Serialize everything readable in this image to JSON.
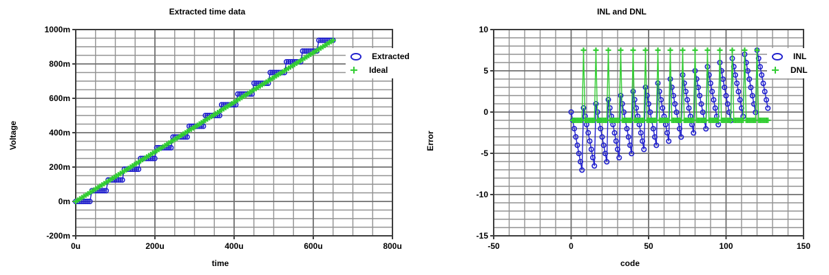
{
  "figure": {
    "background": "#ffffff",
    "grid_minor_color": "#919191",
    "grid_major_color": "#6f6f6f",
    "frame_color": "#3c3c3c"
  },
  "chart_data": [
    {
      "id": "extracted-time-data",
      "type": "line",
      "title": "Extracted time data",
      "xlabel": "time",
      "ylabel": "Voltage",
      "xlim": [
        0,
        800
      ],
      "ylim": [
        -200,
        1000
      ],
      "xticks": [
        0,
        200,
        400,
        600,
        800
      ],
      "xtick_labels": [
        "0u",
        "200u",
        "400u",
        "600u",
        "800u"
      ],
      "yticks": [
        1000,
        800,
        600,
        400,
        200,
        0,
        -200
      ],
      "ytick_labels": [
        "1000m",
        "800m",
        "600m",
        "400m",
        "200m",
        "0m",
        "-200m"
      ],
      "x_minor_step": 50,
      "y_minor_step": 50,
      "grid": true,
      "legend_position": "upper-right",
      "x": [
        0,
        5.1,
        10.2,
        15.4,
        20.5,
        25.6,
        30.7,
        35.8,
        40.9,
        46.1,
        51.2,
        56.3,
        61.4,
        66.5,
        71.7,
        76.8,
        81.9,
        87.0,
        92.1,
        97.2,
        102.4,
        107.5,
        112.6,
        117.7,
        122.8,
        128.0,
        133.1,
        138.2,
        143.3,
        148.4,
        153.5,
        158.7,
        163.8,
        168.9,
        174.0,
        179.1,
        184.3,
        189.4,
        194.5,
        199.6,
        204.7,
        209.8,
        215.0,
        220.1,
        225.2,
        230.3,
        235.4,
        240.6,
        245.7,
        250.8,
        255.9,
        261.0,
        266.1,
        271.3,
        276.4,
        281.5,
        286.6,
        291.7,
        296.9,
        302.0,
        307.1,
        312.2,
        317.3,
        322.4,
        327.6,
        332.7,
        337.8,
        342.9,
        348.0,
        353.1,
        358.3,
        363.4,
        368.5,
        373.6,
        378.7,
        383.9,
        389.0,
        394.1,
        399.2,
        404.3,
        409.4,
        414.6,
        419.7,
        424.8,
        429.9,
        435.0,
        440.2,
        445.3,
        450.4,
        455.5,
        460.6,
        465.7,
        470.9,
        476.0,
        481.1,
        486.2,
        491.3,
        496.5,
        501.6,
        506.7,
        511.8,
        516.9,
        522.0,
        527.2,
        532.3,
        537.4,
        542.5,
        547.6,
        552.8,
        557.9,
        563.0,
        568.1,
        573.2,
        578.3,
        583.5,
        588.6,
        593.7,
        598.8,
        603.9,
        609.1,
        614.2,
        619.3,
        624.4,
        629.5,
        634.6,
        639.8,
        644.9,
        650.0
      ],
      "series": [
        {
          "name": "Extracted",
          "marker": "circle",
          "color": "#2121cd",
          "y": [
            0,
            0,
            0,
            0,
            0,
            0,
            0,
            0,
            62.5,
            62.5,
            62.5,
            62.5,
            62.5,
            62.5,
            62.5,
            62.5,
            125,
            125,
            125,
            125,
            125,
            125,
            125,
            125,
            187.5,
            187.5,
            187.5,
            187.5,
            187.5,
            187.5,
            187.5,
            187.5,
            250,
            250,
            250,
            250,
            250,
            250,
            250,
            250,
            312.5,
            312.5,
            312.5,
            312.5,
            312.5,
            312.5,
            312.5,
            312.5,
            375,
            375,
            375,
            375,
            375,
            375,
            375,
            375,
            437.5,
            437.5,
            437.5,
            437.5,
            437.5,
            437.5,
            437.5,
            437.5,
            500,
            500,
            500,
            500,
            500,
            500,
            500,
            500,
            562.5,
            562.5,
            562.5,
            562.5,
            562.5,
            562.5,
            562.5,
            562.5,
            625,
            625,
            625,
            625,
            625,
            625,
            625,
            625,
            687.5,
            687.5,
            687.5,
            687.5,
            687.5,
            687.5,
            687.5,
            687.5,
            750,
            750,
            750,
            750,
            750,
            750,
            750,
            750,
            812.5,
            812.5,
            812.5,
            812.5,
            812.5,
            812.5,
            812.5,
            812.5,
            875,
            875,
            875,
            875,
            875,
            875,
            875,
            875,
            937.5,
            937.5,
            937.5,
            937.5,
            937.5,
            937.5,
            937.5,
            937.5
          ]
        },
        {
          "name": "Ideal",
          "marker": "plus",
          "color": "#32cd32",
          "y": [
            0,
            7.4,
            14.8,
            22.1,
            29.5,
            36.9,
            44.3,
            51.7,
            59.1,
            66.4,
            73.8,
            81.2,
            88.6,
            96.0,
            103.3,
            110.7,
            118.1,
            125.5,
            132.9,
            140.3,
            147.6,
            155.0,
            162.4,
            169.8,
            177.2,
            184.5,
            191.9,
            199.3,
            206.7,
            214.1,
            221.5,
            228.8,
            236.2,
            243.6,
            251.0,
            258.4,
            265.7,
            273.1,
            280.5,
            287.9,
            295.3,
            302.7,
            310.0,
            317.4,
            324.8,
            332.2,
            339.6,
            346.9,
            354.3,
            361.7,
            369.1,
            376.5,
            383.9,
            391.2,
            398.6,
            406.0,
            413.4,
            420.8,
            428.2,
            435.5,
            442.9,
            450.3,
            457.7,
            465.1,
            472.4,
            479.8,
            487.2,
            494.6,
            502.0,
            509.4,
            516.7,
            524.1,
            531.5,
            538.9,
            546.3,
            553.6,
            561.0,
            568.4,
            575.8,
            583.2,
            590.6,
            597.9,
            605.3,
            612.7,
            620.1,
            627.5,
            634.8,
            642.2,
            649.6,
            657.0,
            664.4,
            671.8,
            679.1,
            686.5,
            693.9,
            701.3,
            708.7,
            716.0,
            723.4,
            730.8,
            738.2,
            745.6,
            753.0,
            760.3,
            767.7,
            775.1,
            782.5,
            789.9,
            797.2,
            804.6,
            812.0,
            819.4,
            826.8,
            834.2,
            841.5,
            848.9,
            856.3,
            863.7,
            871.1,
            878.4,
            885.8,
            893.2,
            900.6,
            908.0,
            915.4,
            922.7,
            930.1,
            937.5
          ]
        }
      ]
    },
    {
      "id": "inl-dnl",
      "type": "line",
      "title": "INL and DNL",
      "xlabel": "code",
      "ylabel": "Error",
      "xlim": [
        -50,
        150
      ],
      "ylim": [
        -15,
        10
      ],
      "xticks": [
        -50,
        0,
        50,
        100,
        150
      ],
      "xtick_labels": [
        "-50",
        "0",
        "50",
        "100",
        "150"
      ],
      "yticks": [
        10,
        5,
        0,
        -5,
        -10,
        -15
      ],
      "ytick_labels": [
        "10",
        "5",
        "0",
        "-5",
        "-10",
        "-15"
      ],
      "x_minor_step": 10,
      "y_minor_step": 1,
      "grid": true,
      "legend_position": "upper-right",
      "series": [
        {
          "name": "INL",
          "marker": "circle",
          "color": "#2121cd",
          "x": [
            0,
            1,
            2,
            3,
            4,
            5,
            6,
            7,
            8,
            9,
            10,
            11,
            12,
            13,
            14,
            15,
            16,
            17,
            18,
            19,
            20,
            21,
            22,
            23,
            24,
            25,
            26,
            27,
            28,
            29,
            30,
            31,
            32,
            33,
            34,
            35,
            36,
            37,
            38,
            39,
            40,
            41,
            42,
            43,
            44,
            45,
            46,
            47,
            48,
            49,
            50,
            51,
            52,
            53,
            54,
            55,
            56,
            57,
            58,
            59,
            60,
            61,
            62,
            63,
            64,
            65,
            66,
            67,
            68,
            69,
            70,
            71,
            72,
            73,
            74,
            75,
            76,
            77,
            78,
            79,
            80,
            81,
            82,
            83,
            84,
            85,
            86,
            87,
            88,
            89,
            90,
            91,
            92,
            93,
            94,
            95,
            96,
            97,
            98,
            99,
            100,
            101,
            102,
            103,
            104,
            105,
            106,
            107,
            108,
            109,
            110,
            111,
            112,
            113,
            114,
            115,
            116,
            117,
            118,
            119,
            120,
            121,
            122,
            123,
            124,
            125,
            126,
            127
          ],
          "y": [
            0,
            -1,
            -2.01,
            -3.01,
            -4.02,
            -5.02,
            -6.02,
            -7.03,
            0.5,
            -0.5,
            -1.51,
            -2.51,
            -3.52,
            -4.52,
            -5.52,
            -6.53,
            1,
            0,
            -1.01,
            -2.01,
            -3.02,
            -4.02,
            -5.02,
            -6.03,
            1.5,
            0.5,
            -0.51,
            -1.51,
            -2.52,
            -3.52,
            -4.52,
            -5.53,
            2,
            1,
            -0.01,
            -1.01,
            -2.02,
            -3.02,
            -4.02,
            -5.03,
            2.5,
            1.5,
            0.49,
            -0.51,
            -1.52,
            -2.52,
            -3.52,
            -4.53,
            3,
            2,
            0.99,
            -0.01,
            -1.02,
            -2.02,
            -3.02,
            -4.03,
            3.5,
            2.5,
            1.49,
            0.49,
            -0.52,
            -1.52,
            -2.52,
            -3.53,
            4,
            3,
            1.99,
            0.99,
            -0.02,
            -1.02,
            -2.02,
            -3.03,
            4.5,
            3.5,
            2.49,
            1.49,
            0.48,
            -0.52,
            -1.52,
            -2.53,
            5,
            4,
            2.99,
            1.99,
            0.98,
            -0.02,
            -1.02,
            -2.03,
            5.5,
            4.5,
            3.49,
            2.49,
            1.48,
            0.48,
            -0.52,
            -1.53,
            6,
            5,
            3.99,
            2.99,
            1.98,
            0.98,
            -0.02,
            -1.03,
            6.5,
            5.5,
            4.49,
            3.49,
            2.48,
            1.48,
            0.48,
            -0.53,
            7,
            6,
            4.99,
            3.99,
            2.98,
            1.98,
            0.98,
            -0.03,
            7.5,
            6.5,
            5.49,
            4.49,
            3.48,
            2.48,
            1.48,
            0.47
          ]
        },
        {
          "name": "DNL",
          "marker": "plus",
          "color": "#32cd32",
          "x": [
            1,
            2,
            3,
            4,
            5,
            6,
            7,
            8,
            9,
            10,
            11,
            12,
            13,
            14,
            15,
            16,
            17,
            18,
            19,
            20,
            21,
            22,
            23,
            24,
            25,
            26,
            27,
            28,
            29,
            30,
            31,
            32,
            33,
            34,
            35,
            36,
            37,
            38,
            39,
            40,
            41,
            42,
            43,
            44,
            45,
            46,
            47,
            48,
            49,
            50,
            51,
            52,
            53,
            54,
            55,
            56,
            57,
            58,
            59,
            60,
            61,
            62,
            63,
            64,
            65,
            66,
            67,
            68,
            69,
            70,
            71,
            72,
            73,
            74,
            75,
            76,
            77,
            78,
            79,
            80,
            81,
            82,
            83,
            84,
            85,
            86,
            87,
            88,
            89,
            90,
            91,
            92,
            93,
            94,
            95,
            96,
            97,
            98,
            99,
            100,
            101,
            102,
            103,
            104,
            105,
            106,
            107,
            108,
            109,
            110,
            111,
            112,
            113,
            114,
            115,
            116,
            117,
            118,
            119,
            120,
            121,
            122,
            123,
            124,
            125,
            126,
            127
          ],
          "y": [
            -1,
            -1,
            -1,
            -1,
            -1,
            -1,
            -1,
            7.5,
            -1,
            -1,
            -1,
            -1,
            -1,
            -1,
            -1,
            7.5,
            -1,
            -1,
            -1,
            -1,
            -1,
            -1,
            -1,
            7.5,
            -1,
            -1,
            -1,
            -1,
            -1,
            -1,
            -1,
            7.5,
            -1,
            -1,
            -1,
            -1,
            -1,
            -1,
            -1,
            7.5,
            -1,
            -1,
            -1,
            -1,
            -1,
            -1,
            -1,
            7.5,
            -1,
            -1,
            -1,
            -1,
            -1,
            -1,
            -1,
            7.5,
            -1,
            -1,
            -1,
            -1,
            -1,
            -1,
            -1,
            7.5,
            -1,
            -1,
            -1,
            -1,
            -1,
            -1,
            -1,
            7.5,
            -1,
            -1,
            -1,
            -1,
            -1,
            -1,
            -1,
            7.5,
            -1,
            -1,
            -1,
            -1,
            -1,
            -1,
            -1,
            7.5,
            -1,
            -1,
            -1,
            -1,
            -1,
            -1,
            -1,
            7.5,
            -1,
            -1,
            -1,
            -1,
            -1,
            -1,
            -1,
            7.5,
            -1,
            -1,
            -1,
            -1,
            -1,
            -1,
            -1,
            7.5,
            -1,
            -1,
            -1,
            -1,
            -1,
            -1,
            -1,
            7.5,
            -1,
            -1,
            -1,
            -1,
            -1,
            -1,
            -1
          ]
        }
      ]
    }
  ]
}
